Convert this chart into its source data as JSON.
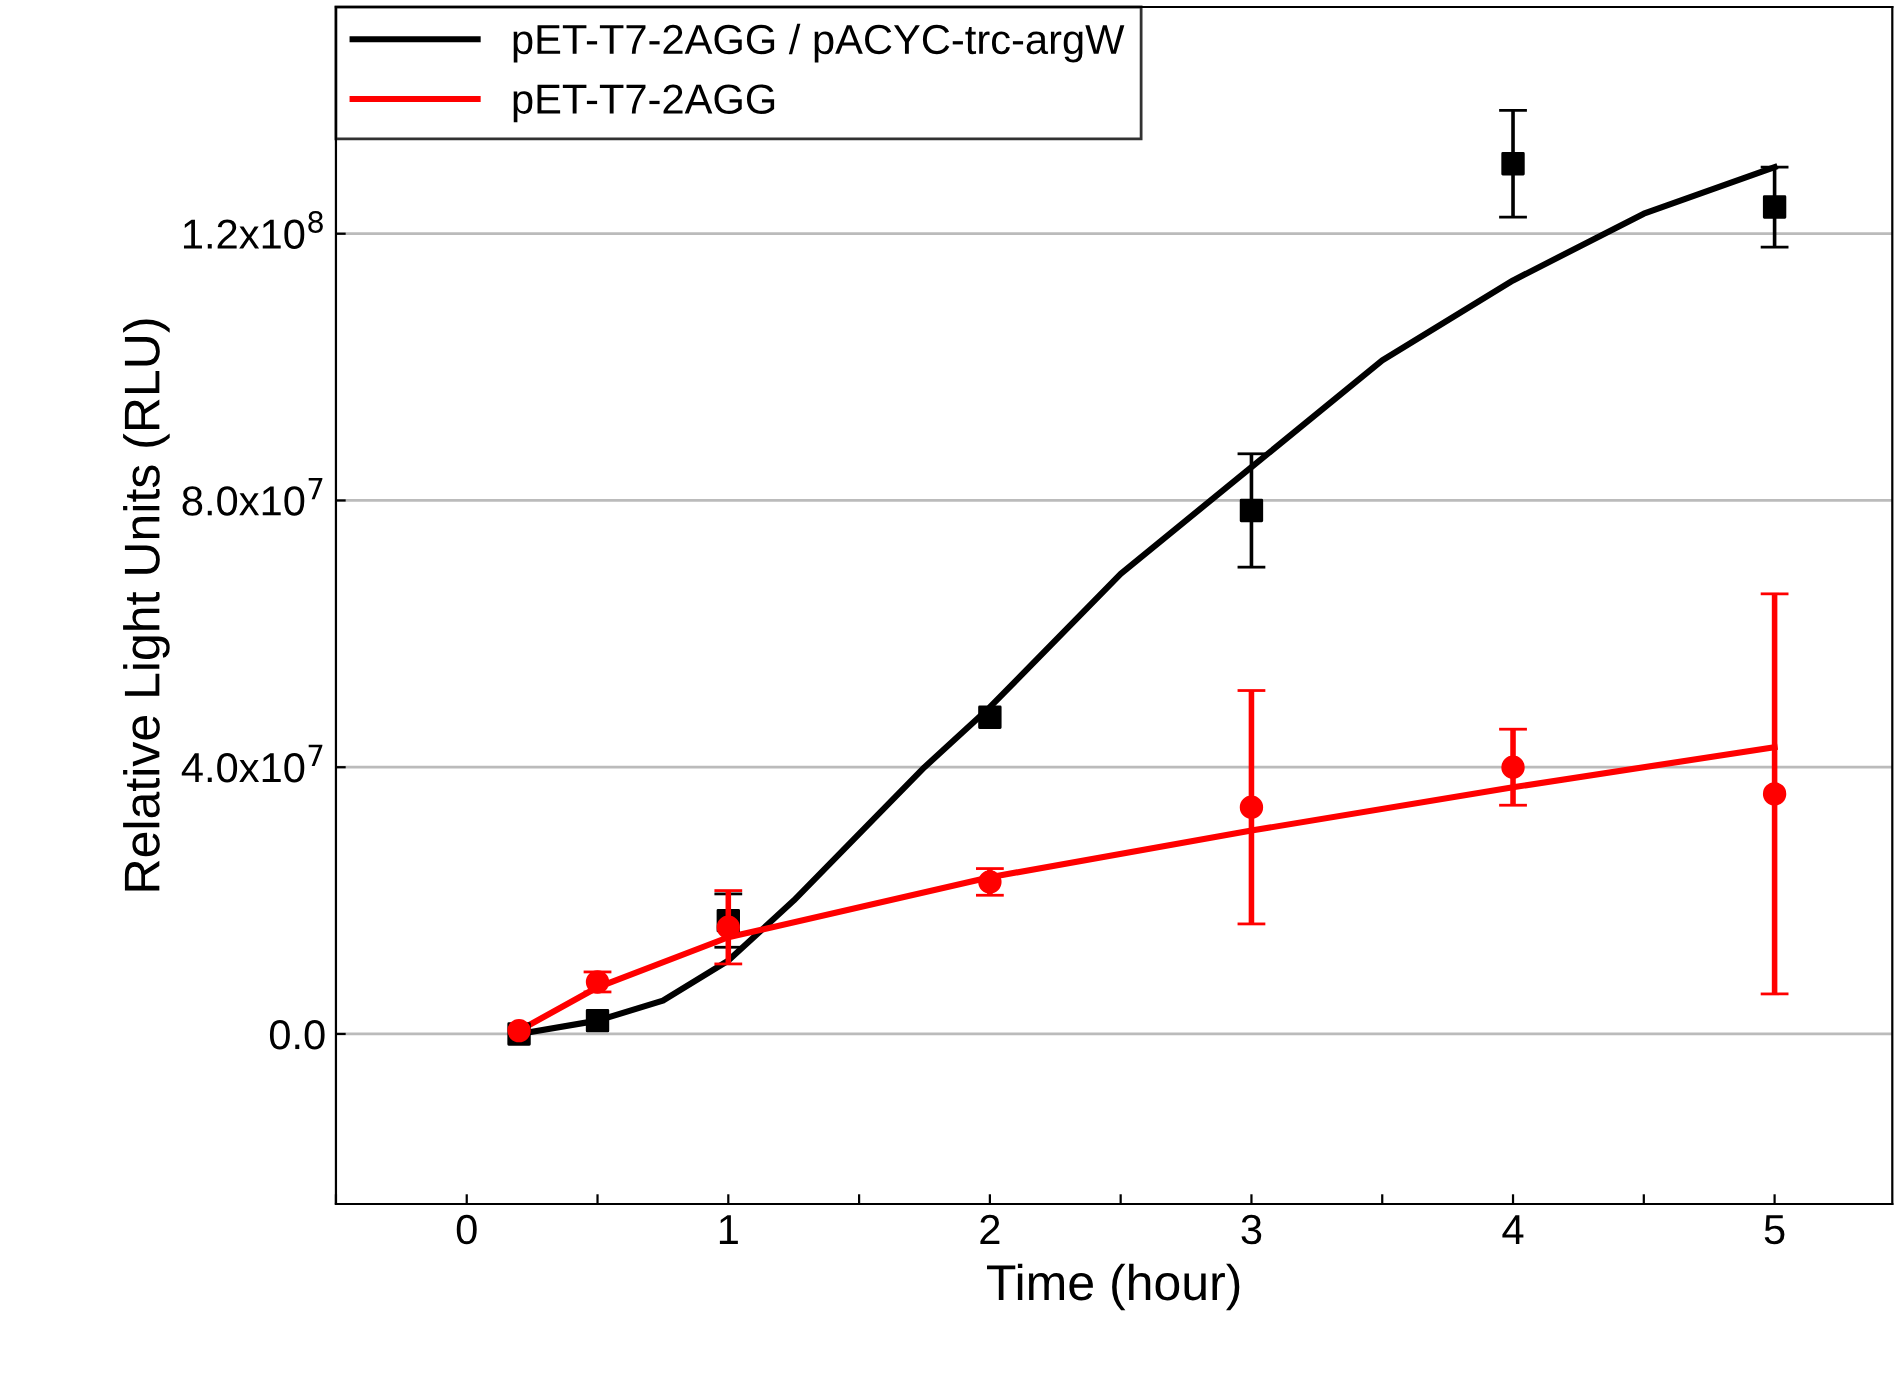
{
  "chart_data": {
    "type": "scatter",
    "xlabel": "Time (hour)",
    "ylabel": "Relative Light Units (RLU)",
    "xlim": [
      -0.5,
      5.45
    ],
    "ylim": [
      -25500000.0,
      154000000.0
    ],
    "xticks": [
      {
        "value": -0.5,
        "label": null
      },
      0,
      {
        "value": 0.5,
        "label": null
      },
      1,
      {
        "value": 1.5,
        "label": null
      },
      2,
      {
        "value": 2.5,
        "label": null
      },
      3,
      {
        "value": 3.5,
        "label": null
      },
      4,
      {
        "value": 4.5,
        "label": null
      },
      5
    ],
    "yticks": [
      {
        "value": 0,
        "label": "0.0"
      },
      {
        "value": 40000000.0,
        "label": "4.0x10$^{7}$"
      },
      {
        "value": 80000000.0,
        "label": "8.0x10$^{7}$"
      },
      {
        "value": 120000000.0,
        "label": "1.2x10$^{8}$"
      }
    ],
    "grid": "y",
    "legend": "top left",
    "marker": "square",
    "series": [
      {
        "type": "line",
        "name": "pET-T7-2AGG / pACYC-trc-argW",
        "color": "#000000",
        "marker": "none",
        "x": [
          0.2,
          0.5,
          0.75,
          1,
          1.25,
          1.5,
          1.75,
          2,
          2.5,
          3,
          3.5,
          4,
          4.5,
          5
        ],
        "values": [
          0,
          2000000.0,
          5000000.0,
          11000000.0,
          20000000.0,
          30000000.0,
          40000000.0,
          49000000.0,
          69000000.0,
          85000000.0,
          101000000.0,
          113000000.0,
          123000000.0,
          130000000.0
        ]
      },
      {
        "type": "line",
        "name": "pET-T7-2AGG",
        "color": "#ff0000",
        "marker": "none",
        "x": [
          0.2,
          0.5,
          1,
          2,
          3,
          4,
          5
        ],
        "values": [
          500000.0,
          7000000.0,
          14500000.0,
          23500000.0,
          30500000.0,
          37000000.0,
          43000000.0
        ]
      },
      {
        "color": "#000000",
        "x": [
          0.2,
          0.5,
          1,
          2,
          3,
          4,
          5
        ],
        "values": [
          0,
          2000000.0,
          17000000.0,
          47500000.0,
          78500000.0,
          130500000.0,
          124000000.0
        ],
        "errors": [
          null,
          null,
          4000000.0,
          null,
          8500000.0,
          8000000.0,
          6000000.0
        ]
      },
      {
        "color": "#ff0000",
        "marker": "circle",
        "x": [
          0.2,
          0.5,
          1,
          2,
          3,
          4,
          5
        ],
        "values": [
          500000.0,
          7800000.0,
          16000000.0,
          22800000.0,
          34000000.0,
          40000000.0,
          36000000.0
        ],
        "errors": [
          null,
          1500000.0,
          5500000.0,
          2000000.0,
          17500000.0,
          5700000.0,
          30000000.0
        ]
      }
    ]
  }
}
